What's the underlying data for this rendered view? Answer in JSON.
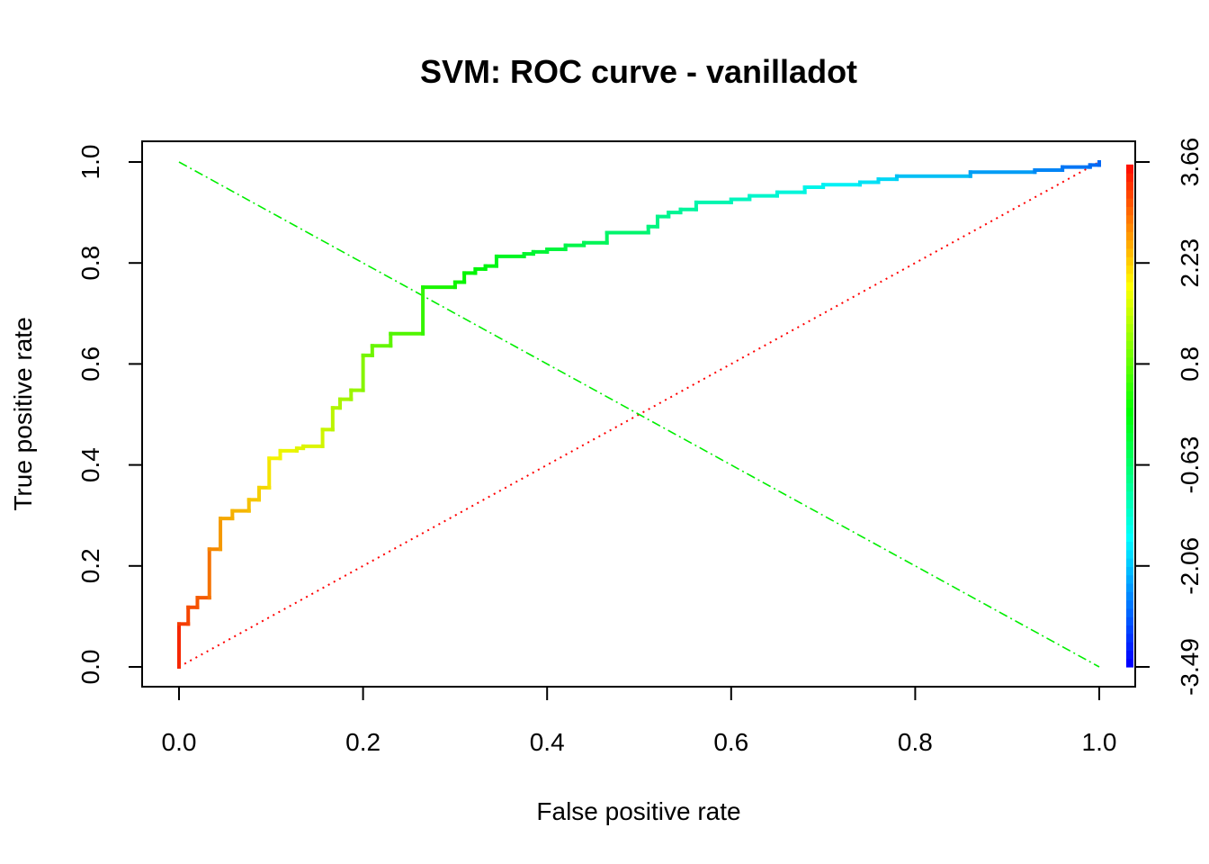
{
  "chart_data": {
    "type": "line",
    "title": "SVM: ROC curve - vanilladot",
    "xlabel": "False positive rate",
    "ylabel": "True positive rate",
    "xlim": [
      0,
      1
    ],
    "ylim": [
      0,
      1
    ],
    "x_ticks": [
      "0.0",
      "0.2",
      "0.4",
      "0.6",
      "0.8",
      "1.0"
    ],
    "y_ticks": [
      "0.0",
      "0.2",
      "0.4",
      "0.6",
      "0.8",
      "1.0"
    ],
    "colorbar": {
      "ticks": [
        "-3.49",
        "-2.06",
        "-0.63",
        "0.8",
        "2.23",
        "3.66"
      ],
      "range": [
        -3.49,
        3.66
      ]
    },
    "series": [
      {
        "name": "ROC curve (vanilladot)",
        "style": "step, colored by cutoff",
        "points": [
          [
            0.0,
            0.0
          ],
          [
            0.0,
            0.085
          ],
          [
            0.01,
            0.085
          ],
          [
            0.01,
            0.118
          ],
          [
            0.02,
            0.118
          ],
          [
            0.02,
            0.137
          ],
          [
            0.033,
            0.137
          ],
          [
            0.033,
            0.233
          ],
          [
            0.045,
            0.233
          ],
          [
            0.045,
            0.294
          ],
          [
            0.058,
            0.294
          ],
          [
            0.058,
            0.309
          ],
          [
            0.076,
            0.309
          ],
          [
            0.076,
            0.331
          ],
          [
            0.087,
            0.331
          ],
          [
            0.087,
            0.355
          ],
          [
            0.098,
            0.355
          ],
          [
            0.098,
            0.413
          ],
          [
            0.11,
            0.413
          ],
          [
            0.11,
            0.428
          ],
          [
            0.128,
            0.428
          ],
          [
            0.128,
            0.433
          ],
          [
            0.135,
            0.433
          ],
          [
            0.135,
            0.437
          ],
          [
            0.156,
            0.437
          ],
          [
            0.156,
            0.47
          ],
          [
            0.167,
            0.47
          ],
          [
            0.167,
            0.513
          ],
          [
            0.175,
            0.513
          ],
          [
            0.175,
            0.53
          ],
          [
            0.187,
            0.53
          ],
          [
            0.187,
            0.548
          ],
          [
            0.2,
            0.548
          ],
          [
            0.2,
            0.617
          ],
          [
            0.21,
            0.617
          ],
          [
            0.21,
            0.636
          ],
          [
            0.23,
            0.636
          ],
          [
            0.23,
            0.66
          ],
          [
            0.265,
            0.66
          ],
          [
            0.265,
            0.752
          ],
          [
            0.3,
            0.752
          ],
          [
            0.3,
            0.762
          ],
          [
            0.31,
            0.762
          ],
          [
            0.31,
            0.78
          ],
          [
            0.322,
            0.78
          ],
          [
            0.322,
            0.788
          ],
          [
            0.333,
            0.788
          ],
          [
            0.333,
            0.794
          ],
          [
            0.345,
            0.794
          ],
          [
            0.345,
            0.813
          ],
          [
            0.375,
            0.813
          ],
          [
            0.375,
            0.818
          ],
          [
            0.385,
            0.818
          ],
          [
            0.385,
            0.822
          ],
          [
            0.4,
            0.822
          ],
          [
            0.4,
            0.827
          ],
          [
            0.42,
            0.827
          ],
          [
            0.42,
            0.835
          ],
          [
            0.44,
            0.835
          ],
          [
            0.44,
            0.84
          ],
          [
            0.465,
            0.84
          ],
          [
            0.465,
            0.86
          ],
          [
            0.51,
            0.86
          ],
          [
            0.51,
            0.872
          ],
          [
            0.52,
            0.872
          ],
          [
            0.52,
            0.892
          ],
          [
            0.532,
            0.892
          ],
          [
            0.532,
            0.9
          ],
          [
            0.545,
            0.9
          ],
          [
            0.545,
            0.906
          ],
          [
            0.562,
            0.906
          ],
          [
            0.562,
            0.92
          ],
          [
            0.6,
            0.92
          ],
          [
            0.6,
            0.926
          ],
          [
            0.62,
            0.926
          ],
          [
            0.62,
            0.933
          ],
          [
            0.65,
            0.933
          ],
          [
            0.65,
            0.94
          ],
          [
            0.68,
            0.94
          ],
          [
            0.68,
            0.95
          ],
          [
            0.7,
            0.95
          ],
          [
            0.7,
            0.955
          ],
          [
            0.74,
            0.955
          ],
          [
            0.74,
            0.96
          ],
          [
            0.76,
            0.96
          ],
          [
            0.76,
            0.966
          ],
          [
            0.78,
            0.966
          ],
          [
            0.78,
            0.972
          ],
          [
            0.86,
            0.972
          ],
          [
            0.86,
            0.98
          ],
          [
            0.93,
            0.98
          ],
          [
            0.93,
            0.984
          ],
          [
            0.96,
            0.984
          ],
          [
            0.96,
            0.99
          ],
          [
            0.99,
            0.99
          ],
          [
            0.99,
            0.994
          ],
          [
            1.0,
            0.994
          ],
          [
            1.0,
            1.0
          ]
        ]
      },
      {
        "name": "diagonal (chance)",
        "style": "dotted",
        "color": "#ff0000",
        "points": [
          [
            0,
            0
          ],
          [
            1,
            1
          ]
        ]
      },
      {
        "name": "anti-diagonal",
        "style": "dot-dash",
        "color": "#00ee00",
        "points": [
          [
            0,
            1
          ],
          [
            1,
            0
          ]
        ]
      }
    ]
  }
}
